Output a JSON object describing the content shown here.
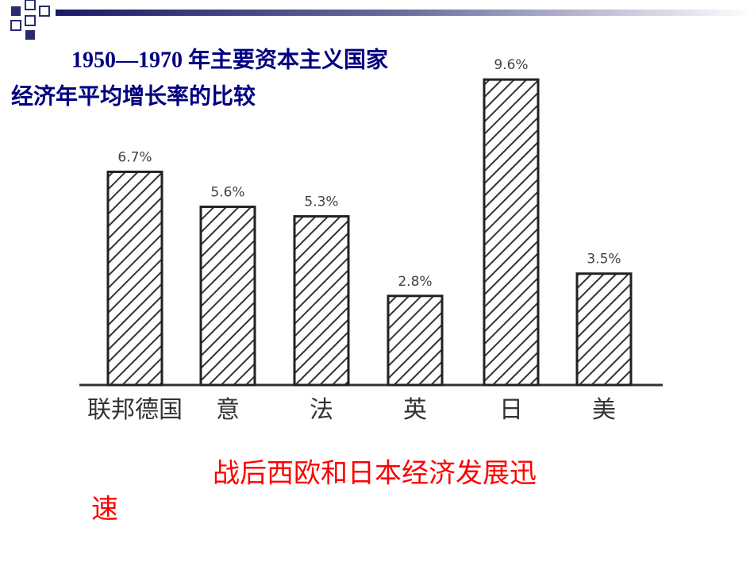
{
  "chart_data": {
    "type": "bar",
    "title": [
      "1950—1970 年主要资本主义国家",
      "经济年平均增长率的比较"
    ],
    "categories": [
      "联邦德国",
      "意",
      "法",
      "英",
      "日",
      "美"
    ],
    "values": [
      6.7,
      5.6,
      5.3,
      2.8,
      9.6,
      3.5
    ],
    "value_labels": [
      "6.7%",
      "5.6%",
      "5.3%",
      "2.8%",
      "9.6%",
      "3.5%"
    ],
    "color": "#222222",
    "ylim": [
      0,
      12
    ],
    "annotation": [
      "战后西欧和日本经济发展迅",
      "速"
    ]
  }
}
